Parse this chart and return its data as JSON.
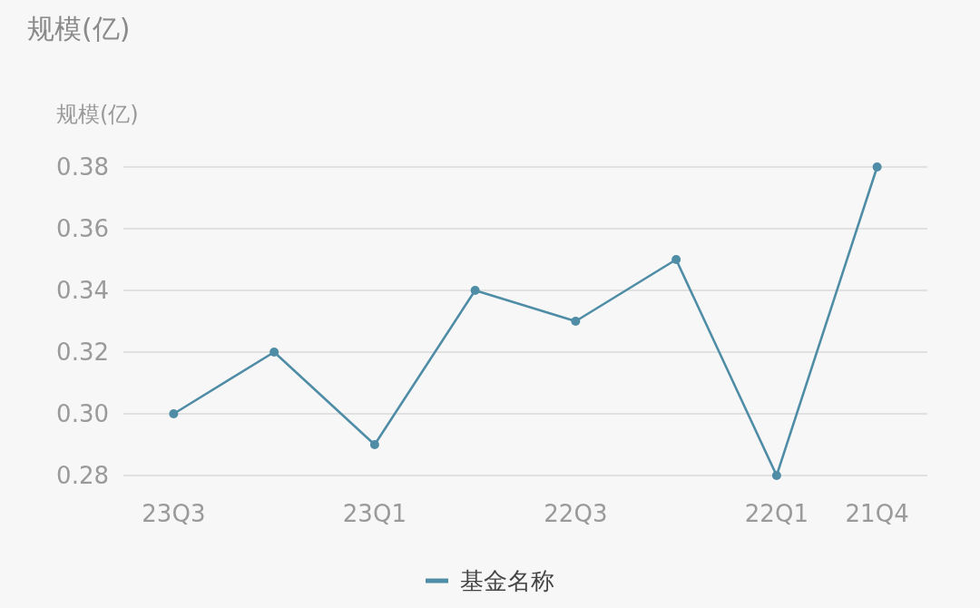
{
  "chart_data": {
    "type": "line",
    "title": "规模(亿)",
    "ylabel": "规模(亿)",
    "categories": [
      "23Q3",
      null,
      "23Q1",
      null,
      "22Q3",
      null,
      "22Q1",
      "21Q4"
    ],
    "series": [
      {
        "name": "基金名称",
        "color": "#4f8ca6",
        "values": [
          0.3,
          0.32,
          0.29,
          0.34,
          0.33,
          0.35,
          0.28,
          0.38
        ]
      }
    ],
    "ylim": [
      0.28,
      0.38
    ],
    "yticks": [
      0.28,
      {
        "value": 0.3,
        "label": "0.30"
      },
      0.32,
      0.34,
      0.36,
      0.38
    ],
    "grid": "y",
    "legend": "bottom",
    "marker": "circle"
  }
}
